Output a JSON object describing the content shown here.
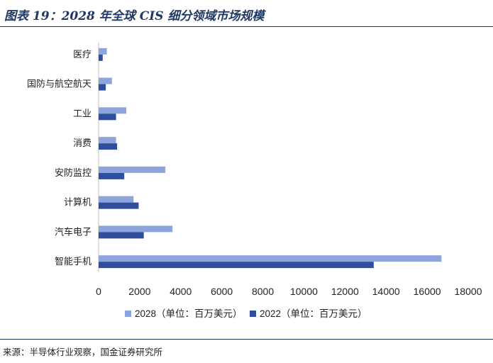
{
  "title": "图表 19：2028 年全球 CIS 细分领域市场规模",
  "source": "来源：半导体行业观察，国金证券研究所",
  "colors": {
    "series_2028": "#8ea4dc",
    "series_2022": "#2f4f9e",
    "title": "#1f3864"
  },
  "chart_data": {
    "type": "bar",
    "orientation": "horizontal",
    "categories": [
      "医疗",
      "国防与航空航天",
      "工业",
      "消费",
      "安防监控",
      "计算机",
      "汽车电子",
      "智能手机"
    ],
    "series": [
      {
        "name": "2028（单位：百万美元）",
        "values": [
          400,
          650,
          1350,
          850,
          3250,
          1700,
          3600,
          16700
        ]
      },
      {
        "name": "2022（单位：百万美元）",
        "values": [
          200,
          350,
          850,
          900,
          1250,
          1950,
          2200,
          13400
        ]
      }
    ],
    "xlim": [
      0,
      18000
    ],
    "xticks": [
      "0",
      "2000",
      "4000",
      "6000",
      "8000",
      "10000",
      "12000",
      "14000",
      "16000",
      "18000"
    ],
    "grid": false,
    "legend_position": "bottom"
  }
}
